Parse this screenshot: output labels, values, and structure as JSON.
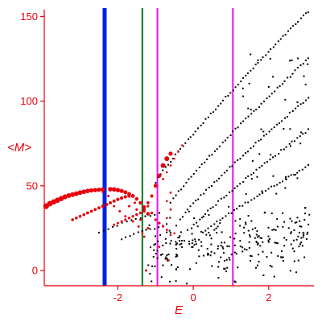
{
  "chart_data": {
    "type": "scatter",
    "title": "",
    "xlabel": "E",
    "ylabel": "<M>",
    "xlim": [
      -3.95,
      3.2
    ],
    "ylim": [
      -9,
      154
    ],
    "x_ticks": [
      {
        "value": -2,
        "label": "-2"
      },
      {
        "value": 0,
        "label": "0"
      },
      {
        "value": 2,
        "label": "2"
      }
    ],
    "y_ticks": [
      {
        "value": 0,
        "label": "0"
      },
      {
        "value": 50,
        "label": "50"
      },
      {
        "value": 100,
        "label": "100"
      },
      {
        "value": 150,
        "label": "150"
      }
    ],
    "grid": false,
    "legend": "none",
    "colors": {
      "axis": "#e8000b",
      "red_points": "#e8000b",
      "black_points": "#000000",
      "blue_line": "#0022dd",
      "green_line": "#007a1f",
      "magenta_line": "#ee11ee"
    },
    "vertical_lines": [
      {
        "x": -2.35,
        "color": "#0022dd",
        "width": "thick"
      },
      {
        "x": -1.35,
        "color": "#007a1f",
        "width": "thin"
      },
      {
        "x": -0.95,
        "color": "#ee11ee",
        "width": "thin"
      },
      {
        "x": 1.05,
        "color": "#ee11ee",
        "width": "thin"
      }
    ],
    "series": [
      {
        "color": "#e8000b",
        "style": "sized-dots",
        "points": [
          [
            -3.9,
            38,
            3.6
          ],
          [
            -3.8,
            39.5,
            3.4
          ],
          [
            -3.7,
            40.5,
            3.3
          ],
          [
            -3.6,
            41.5,
            3.3
          ],
          [
            -3.5,
            42.5,
            3.2
          ],
          [
            -3.4,
            43.5,
            3.1
          ],
          [
            -3.3,
            44.2,
            3
          ],
          [
            -3.2,
            44.8,
            3
          ],
          [
            -3.1,
            45.4,
            2.9
          ],
          [
            -3.0,
            46,
            2.9
          ],
          [
            -2.9,
            46.5,
            2.8
          ],
          [
            -2.8,
            47,
            2.8
          ],
          [
            -2.7,
            47.3,
            2.7
          ],
          [
            -2.6,
            47.5,
            2.7
          ],
          [
            -2.5,
            47.7,
            2.6
          ],
          [
            -2.4,
            47.9,
            2.6
          ],
          [
            -2.2,
            48,
            2.8
          ],
          [
            -2.1,
            47.9,
            2.8
          ],
          [
            -2.0,
            47.5,
            2.7
          ],
          [
            -1.9,
            47,
            2.6
          ],
          [
            -1.8,
            46.2,
            2.5
          ],
          [
            -1.7,
            45.2,
            2.4
          ],
          [
            -1.6,
            44,
            2.3
          ],
          [
            -1.5,
            42.3,
            2.2
          ],
          [
            -1.4,
            40,
            2.2
          ],
          [
            -1.3,
            37.5,
            2.2
          ],
          [
            -1.2,
            33.5,
            2.3
          ],
          [
            -3.2,
            30,
            1.8
          ],
          [
            -3.1,
            31,
            1.8
          ],
          [
            -3.0,
            32,
            1.8
          ],
          [
            -2.9,
            33,
            1.8
          ],
          [
            -2.8,
            34,
            1.9
          ],
          [
            -2.7,
            35,
            1.9
          ],
          [
            -2.6,
            36,
            1.9
          ],
          [
            -2.5,
            37,
            1.9
          ],
          [
            -2.4,
            38,
            2
          ],
          [
            -2.3,
            39,
            2
          ],
          [
            -2.2,
            40,
            2
          ],
          [
            -2.1,
            41,
            2
          ],
          [
            -2.0,
            42,
            2.1
          ],
          [
            -1.9,
            42.8,
            2.1
          ],
          [
            -1.8,
            43.5,
            2.1
          ],
          [
            -1.7,
            44,
            2.1
          ],
          [
            -1.6,
            44.2,
            2.1
          ],
          [
            -2.1,
            27,
            1.5
          ],
          [
            -2.0,
            28,
            1.5
          ],
          [
            -1.9,
            29,
            1.5
          ],
          [
            -1.8,
            30,
            1.6
          ],
          [
            -1.7,
            31,
            1.6
          ],
          [
            -1.6,
            32,
            1.6
          ],
          [
            -1.5,
            33,
            1.7
          ],
          [
            -1.4,
            34,
            1.7
          ],
          [
            -1.3,
            35,
            1.7
          ],
          [
            -1.3,
            36,
            1.9
          ],
          [
            -1.2,
            40,
            1.9
          ],
          [
            -1.1,
            44,
            2
          ],
          [
            -1.0,
            50,
            2.4
          ],
          [
            -0.9,
            56,
            2.6
          ],
          [
            -0.8,
            62,
            3
          ],
          [
            -0.7,
            66,
            3
          ],
          [
            -0.6,
            69,
            2.6
          ],
          [
            -0.8,
            54,
            1.4
          ],
          [
            -0.7,
            58,
            1.3
          ],
          [
            -0.6,
            62,
            1.3
          ],
          [
            -0.5,
            66,
            1.2
          ],
          [
            -0.4,
            70,
            1.2
          ],
          [
            -0.3,
            74,
            1.1
          ],
          [
            -1.2,
            38,
            1.6
          ],
          [
            -1.1,
            34,
            1.7
          ],
          [
            -1.0,
            30,
            1.6
          ],
          [
            -0.9,
            28,
            1.6
          ],
          [
            -0.8,
            26,
            1.5
          ],
          [
            -0.7,
            24,
            1.4
          ],
          [
            -0.6,
            21,
            1.3
          ],
          [
            -0.5,
            22,
            1.3
          ],
          [
            -0.7,
            31,
            1.3
          ],
          [
            -0.6,
            36,
            1.4
          ],
          [
            -0.6,
            46,
            1.4
          ],
          [
            -0.7,
            41,
            1.3
          ],
          [
            -1.25,
            0,
            1.5
          ],
          [
            -1.2,
            25,
            1.5
          ],
          [
            -1.4,
            30,
            1.5
          ],
          [
            -1.5,
            36,
            1.6
          ],
          [
            -1.6,
            29,
            1.5
          ],
          [
            -1.45,
            26,
            1.5
          ],
          [
            -0.9,
            14,
            1.3
          ],
          [
            -0.65,
            6,
            1.3
          ],
          [
            -1.3,
            20,
            1.4
          ],
          [
            -1.35,
            22,
            1.4
          ],
          [
            -2.4,
            46.5,
            1.5
          ],
          [
            -2.25,
            44,
            1.5
          ],
          [
            -2.1,
            38,
            1.5
          ],
          [
            -1.95,
            35,
            1.5
          ],
          [
            -1.8,
            32,
            1.5
          ],
          [
            -1.7,
            38,
            1.5
          ],
          [
            -1.55,
            40,
            1.5
          ]
        ]
      },
      {
        "color": "#000000",
        "style": "small-dots",
        "bands": [
          {
            "from": [
              -1.0,
              52
            ],
            "to": [
              3.05,
              153
            ],
            "count": 62
          },
          {
            "from": [
              -0.6,
              40
            ],
            "to": [
              3.05,
              125
            ],
            "count": 54
          },
          {
            "from": [
              -0.35,
              30
            ],
            "to": [
              3.05,
              102
            ],
            "count": 50
          },
          {
            "from": [
              -0.05,
              25
            ],
            "to": [
              3.05,
              83
            ],
            "count": 44
          },
          {
            "from": [
              0.25,
              22
            ],
            "to": [
              3.05,
              62
            ],
            "count": 38
          },
          {
            "from": [
              -2.5,
              23
            ],
            "to": [
              -0.9,
              34
            ],
            "count": 14
          },
          {
            "from": [
              -1.9,
              19
            ],
            "to": [
              -0.7,
              27
            ],
            "count": 12
          }
        ],
        "cloud": {
          "xlim": [
            -1.2,
            3.1
          ],
          "ylim": [
            -8,
            45
          ],
          "count": 260
        },
        "scattered": {
          "xlim": [
            1.2,
            3.1
          ],
          "ylim": [
            45,
            128
          ],
          "count": 40
        }
      }
    ]
  }
}
